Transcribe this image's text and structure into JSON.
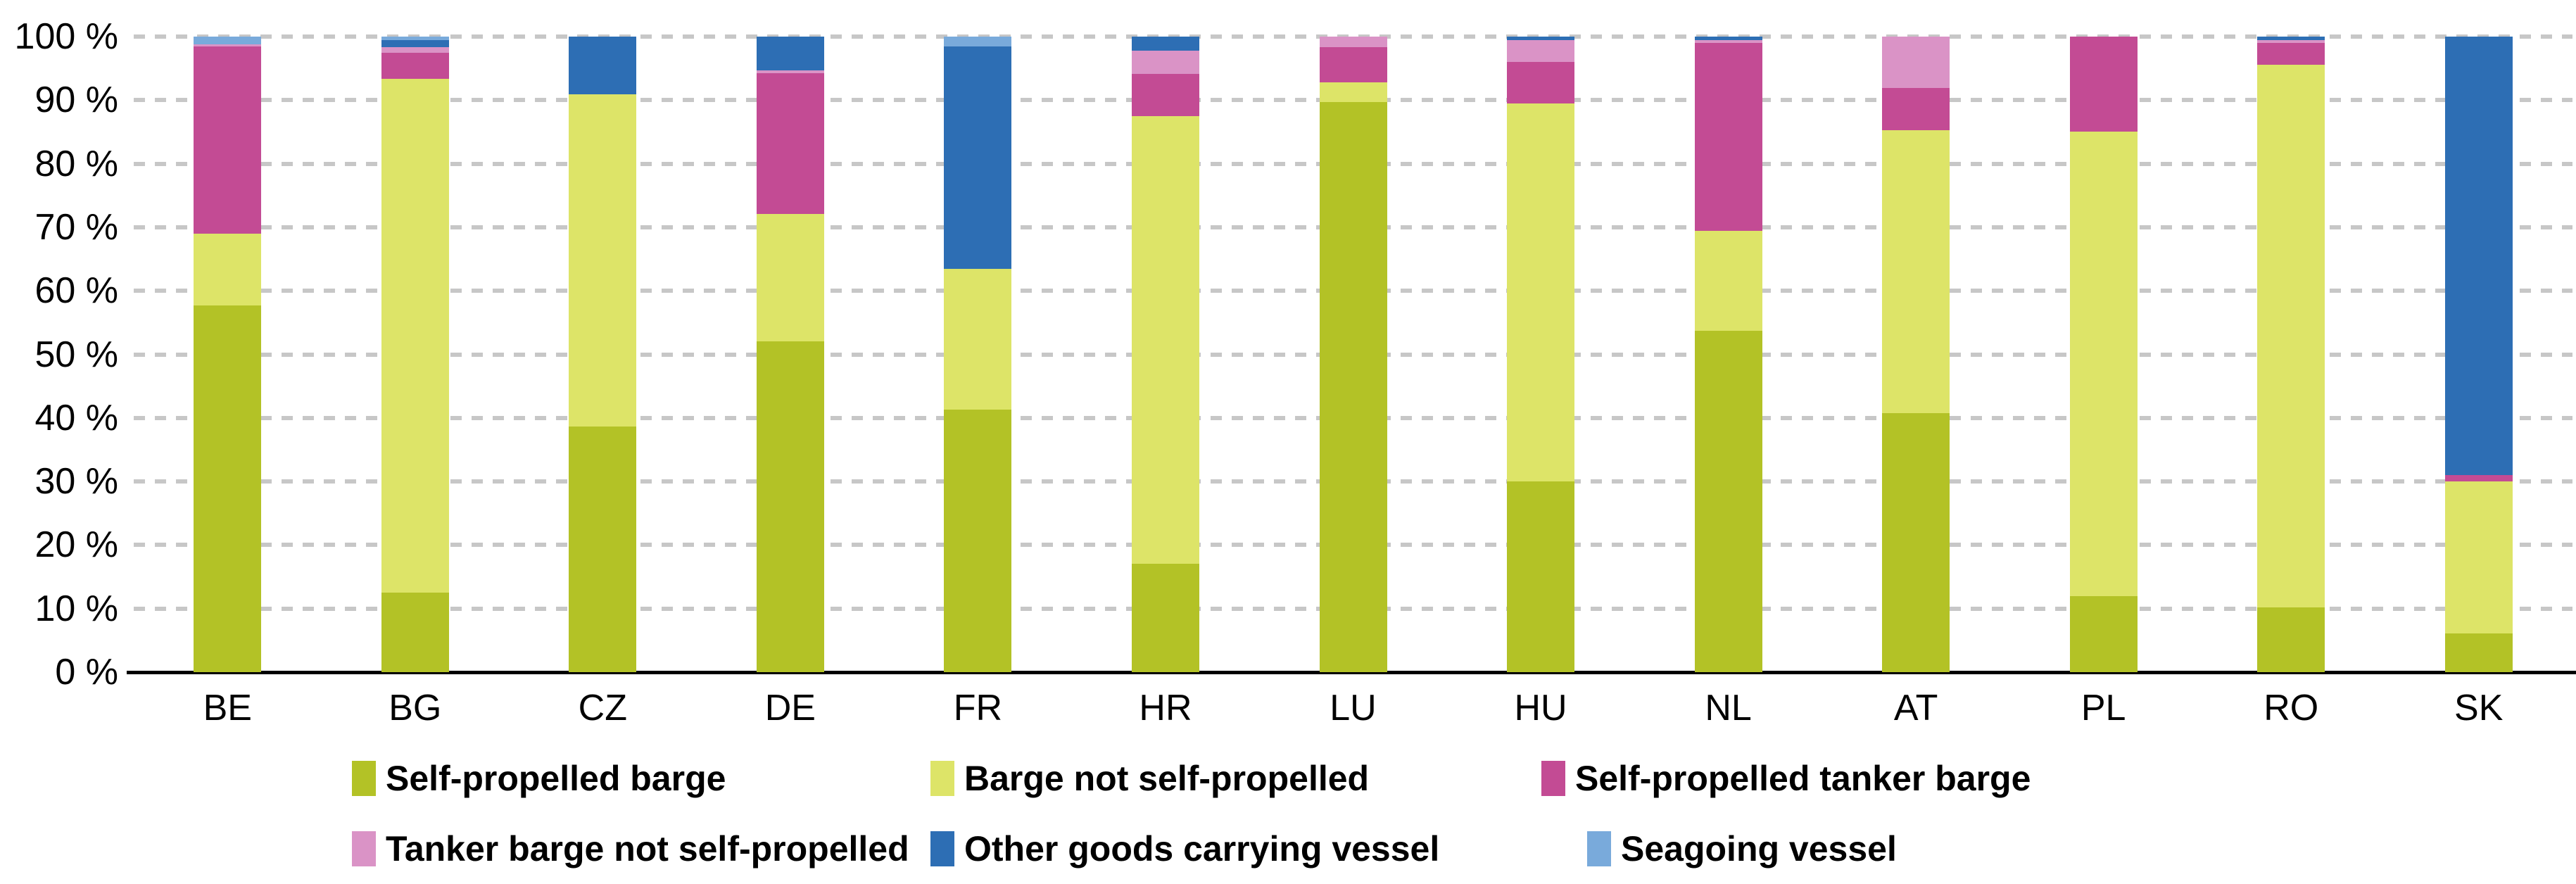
{
  "chart_data": {
    "type": "bar",
    "stacked": true,
    "units": "percent",
    "title": "",
    "xlabel": "",
    "ylabel": "",
    "ylim": [
      0,
      100
    ],
    "grid": "horizontal-dashed",
    "legend_position": "bottom-two-rows",
    "categories": [
      "BE",
      "BG",
      "CZ",
      "DE",
      "FR",
      "HR",
      "LU",
      "HU",
      "NL",
      "AT",
      "PL",
      "RO",
      "SK"
    ],
    "yticks": [
      {
        "pct": 0,
        "label": "0 %"
      },
      {
        "pct": 10,
        "label": "10 %"
      },
      {
        "pct": 20,
        "label": "20 %"
      },
      {
        "pct": 30,
        "label": "30 %"
      },
      {
        "pct": 40,
        "label": "40 %"
      },
      {
        "pct": 50,
        "label": "50 %"
      },
      {
        "pct": 60,
        "label": "60 %"
      },
      {
        "pct": 70,
        "label": "70 %"
      },
      {
        "pct": 80,
        "label": "80 %"
      },
      {
        "pct": 90,
        "label": "90 %"
      },
      {
        "pct": 100,
        "label": "100 %"
      }
    ],
    "series": [
      {
        "name": "Self-propelled barge",
        "color": "#b3c226",
        "values": [
          57.7,
          12.5,
          38.6,
          52.1,
          41.3,
          17.1,
          89.7,
          30.0,
          53.7,
          40.8,
          12.0,
          10.2,
          6.1
        ]
      },
      {
        "name": "Barge not self-propelled",
        "color": "#dde468",
        "values": [
          11.3,
          80.9,
          52.3,
          20.0,
          22.2,
          70.4,
          3.1,
          59.5,
          15.7,
          44.5,
          73.0,
          85.4,
          23.9
        ]
      },
      {
        "name": "Self-propelled tanker barge",
        "color": "#c34b94",
        "values": [
          29.4,
          4.1,
          0.0,
          22.1,
          0.0,
          6.6,
          5.5,
          6.5,
          29.6,
          6.6,
          15.0,
          3.4,
          1.0
        ]
      },
      {
        "name": "Tanker barge not self-propelled",
        "color": "#da93c6",
        "values": [
          0.4,
          0.8,
          0.0,
          0.5,
          0.0,
          3.7,
          1.7,
          3.5,
          0.4,
          8.1,
          0.0,
          0.5,
          0.0
        ]
      },
      {
        "name": "Other goods carrying vessel",
        "color": "#2d6eb4",
        "values": [
          0.0,
          1.2,
          9.1,
          5.3,
          34.9,
          2.2,
          0.0,
          0.5,
          0.6,
          0.0,
          0.0,
          0.5,
          69.0
        ]
      },
      {
        "name": "Seagoing vessel",
        "color": "#79aadb",
        "values": [
          1.2,
          0.5,
          0.0,
          0.0,
          1.6,
          0.0,
          0.0,
          0.0,
          0.0,
          0.0,
          0.0,
          0.0,
          0.0
        ]
      }
    ]
  },
  "colors": {
    "gridline": "#c7c7c7",
    "axis": "#000000",
    "background": "#ffffff"
  }
}
